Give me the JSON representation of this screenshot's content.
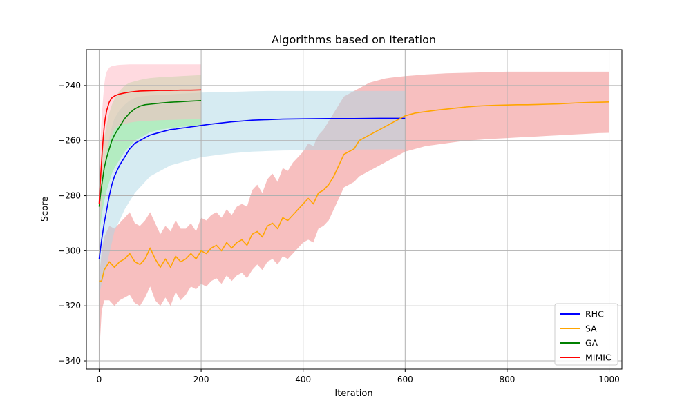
{
  "chart_data": {
    "type": "line",
    "title": "Algorithms based on Iteration",
    "xlabel": "Iteration",
    "ylabel": "Score",
    "xlim": [
      -25,
      1025
    ],
    "ylim": [
      -343,
      -227
    ],
    "xticks": [
      0,
      200,
      400,
      600,
      800,
      1000
    ],
    "yticks": [
      -340,
      -320,
      -300,
      -280,
      -260,
      -240
    ],
    "grid": true,
    "legend_position": "lower-right",
    "series": [
      {
        "name": "RHC",
        "color": "#0000ff",
        "band_color": "#add8e6",
        "x": [
          0,
          5,
          10,
          15,
          20,
          25,
          30,
          40,
          50,
          60,
          70,
          80,
          90,
          100,
          110,
          120,
          130,
          140,
          150,
          160,
          170,
          180,
          190,
          200,
          220,
          240,
          260,
          280,
          300,
          330,
          360,
          400,
          450,
          500,
          550,
          600
        ],
        "y": [
          -303,
          -296,
          -290,
          -285,
          -280,
          -276,
          -273,
          -269,
          -266,
          -263,
          -261,
          -260,
          -259,
          -258,
          -257.5,
          -257,
          -256.5,
          -256,
          -255.8,
          -255.5,
          -255.3,
          -255,
          -254.8,
          -254.5,
          -254,
          -253.6,
          -253.2,
          -252.9,
          -252.6,
          -252.4,
          -252.2,
          -252.1,
          -252,
          -252,
          -251.9,
          -251.9
        ],
        "band_upper": [
          -290,
          -278,
          -270,
          -264,
          -259,
          -255,
          -252,
          -249,
          -247,
          -245.5,
          -244.5,
          -244,
          -243.8,
          -243.6,
          -243.5,
          -243.4,
          -243.3,
          -243.2,
          -243.1,
          -243,
          -242.9,
          -242.8,
          -242.7,
          -242.6,
          -242.5,
          -242.4,
          -242.3,
          -242.2,
          -242.1,
          -242.0,
          -242.0,
          -242.0,
          -242.0,
          -242.0,
          -242.0,
          -242.0
        ],
        "band_upper_note": "",
        "band_lower": [
          -316,
          -312,
          -309,
          -305,
          -301,
          -297,
          -293,
          -289,
          -285,
          -282,
          -279,
          -277,
          -275,
          -273,
          -272,
          -271,
          -270,
          -269,
          -268.5,
          -268,
          -267.5,
          -267,
          -266.5,
          -266,
          -265.5,
          -265,
          -264.6,
          -264.3,
          -264,
          -263.8,
          -263.6,
          -263.5,
          -263.4,
          -263.3,
          -263.2,
          -263.2
        ]
      },
      {
        "name": "SA",
        "color": "#ffa500",
        "band_color": "#f08080",
        "x": [
          0,
          5,
          10,
          20,
          30,
          40,
          50,
          60,
          70,
          80,
          90,
          100,
          110,
          120,
          130,
          140,
          150,
          160,
          170,
          180,
          190,
          200,
          210,
          220,
          230,
          240,
          250,
          260,
          270,
          280,
          290,
          300,
          310,
          320,
          330,
          340,
          350,
          360,
          370,
          380,
          390,
          400,
          410,
          420,
          430,
          440,
          450,
          460,
          470,
          480,
          490,
          500,
          510,
          520,
          530,
          540,
          550,
          560,
          570,
          580,
          590,
          600,
          620,
          640,
          660,
          680,
          700,
          720,
          740,
          760,
          780,
          800,
          820,
          840,
          860,
          880,
          900,
          920,
          940,
          960,
          980,
          1000
        ],
        "y": [
          -311,
          -311,
          -307,
          -304,
          -306,
          -304,
          -303,
          -301,
          -304,
          -305,
          -303,
          -299,
          -303,
          -306,
          -303,
          -306,
          -302,
          -304,
          -303,
          -301,
          -303,
          -300,
          -301,
          -299,
          -298,
          -300,
          -297,
          -299,
          -297,
          -296,
          -298,
          -294,
          -293,
          -295,
          -291,
          -290,
          -292,
          -288,
          -289,
          -287,
          -285,
          -283,
          -281,
          -283,
          -279,
          -278,
          -276,
          -273,
          -269,
          -265,
          -264,
          -263,
          -260,
          -259,
          -258,
          -257,
          -256,
          -255,
          -254,
          -253,
          -252,
          -251,
          -250,
          -249.5,
          -249,
          -248.6,
          -248.2,
          -247.8,
          -247.5,
          -247.3,
          -247.2,
          -247.1,
          -247,
          -247,
          -246.9,
          -246.8,
          -246.7,
          -246.5,
          -246.3,
          -246.2,
          -246.1,
          -246
        ],
        "band_upper": [
          -310,
          -300,
          -295,
          -291,
          -292,
          -290,
          -288,
          -286,
          -290,
          -291,
          -289,
          -286,
          -290,
          -294,
          -291,
          -293,
          -289,
          -292,
          -292,
          -290,
          -293,
          -288,
          -289,
          -287,
          -286,
          -288,
          -285,
          -287,
          -284,
          -283,
          -284,
          -278,
          -276,
          -279,
          -274,
          -272,
          -275,
          -270,
          -271,
          -268,
          -266,
          -264,
          -261,
          -262,
          -258,
          -256,
          -253,
          -250,
          -247,
          -244,
          -243,
          -242,
          -241,
          -240,
          -239,
          -238.5,
          -238,
          -237.5,
          -237.2,
          -237,
          -236.8,
          -236.6,
          -236.3,
          -236,
          -235.8,
          -235.6,
          -235.5,
          -235.4,
          -235.3,
          -235.2,
          -235.1,
          -235,
          -235,
          -235,
          -235,
          -235,
          -235,
          -235,
          -235,
          -235,
          -235,
          -235
        ],
        "band_lower": [
          -338,
          -322,
          -318,
          -318,
          -320,
          -318,
          -317,
          -316,
          -319,
          -320,
          -317,
          -313,
          -318,
          -320,
          -317,
          -320,
          -315,
          -318,
          -316,
          -313,
          -314,
          -312,
          -313,
          -311,
          -310,
          -312,
          -309,
          -311,
          -309,
          -308,
          -310,
          -307,
          -305,
          -307,
          -304,
          -303,
          -305,
          -302,
          -303,
          -301,
          -299,
          -297,
          -296,
          -297,
          -292,
          -291,
          -289,
          -285,
          -281,
          -277,
          -276,
          -275,
          -273,
          -272,
          -271,
          -270,
          -269,
          -268,
          -267,
          -266,
          -265,
          -264,
          -263,
          -262,
          -261.5,
          -261,
          -260.5,
          -260,
          -259.8,
          -259.5,
          -259.3,
          -259.1,
          -258.9,
          -258.7,
          -258.5,
          -258.3,
          -258.1,
          -257.9,
          -257.7,
          -257.5,
          -257.3,
          -257.2
        ]
      },
      {
        "name": "GA",
        "color": "#008000",
        "band_color": "#90ee90",
        "x": [
          0,
          3,
          6,
          10,
          15,
          20,
          25,
          30,
          40,
          50,
          60,
          70,
          80,
          90,
          100,
          120,
          140,
          160,
          180,
          200
        ],
        "y": [
          -284,
          -279,
          -275,
          -270,
          -266,
          -263,
          -260,
          -258,
          -255,
          -252,
          -250,
          -248.5,
          -247.5,
          -247,
          -246.8,
          -246.4,
          -246.1,
          -245.9,
          -245.7,
          -245.5
        ],
        "band_upper": [
          -276,
          -270,
          -265,
          -259,
          -254,
          -250,
          -247,
          -245,
          -242,
          -240,
          -239,
          -238.5,
          -238,
          -237.6,
          -237.3,
          -237,
          -236.8,
          -236.6,
          -236.4,
          -236.2
        ],
        "band_lower": [
          -294,
          -290,
          -286,
          -282,
          -278,
          -275,
          -272,
          -270,
          -267,
          -264,
          -262,
          -260,
          -259,
          -258,
          -257,
          -256,
          -255.5,
          -255,
          -254.8,
          -254.5
        ]
      },
      {
        "name": "MIMIC",
        "color": "#ff0000",
        "band_color": "#ffb6c1",
        "x": [
          0,
          2,
          4,
          6,
          8,
          10,
          12,
          15,
          20,
          25,
          30,
          35,
          40,
          50,
          60,
          70,
          80,
          100,
          120,
          140,
          160,
          180,
          200
        ],
        "y": [
          -283,
          -276,
          -270,
          -264,
          -259,
          -255,
          -252,
          -249,
          -246,
          -244.5,
          -243.8,
          -243.4,
          -243.1,
          -242.7,
          -242.4,
          -242.2,
          -242.0,
          -241.9,
          -241.8,
          -241.8,
          -241.7,
          -241.7,
          -241.6
        ],
        "band_upper": [
          -270,
          -262,
          -255,
          -249,
          -244,
          -240,
          -237,
          -235,
          -233.5,
          -233,
          -232.8,
          -232.6,
          -232.5,
          -232.4,
          -232.3,
          -232.3,
          -232.3,
          -232.3,
          -232.3,
          -232.3,
          -232.3,
          -232.3,
          -232.3
        ],
        "band_lower": [
          -296,
          -290,
          -285,
          -279,
          -274,
          -270,
          -267,
          -264,
          -260,
          -258,
          -256,
          -255,
          -254.5,
          -254,
          -253.5,
          -253.2,
          -253,
          -252.8,
          -252.6,
          -252.5,
          -252.4,
          -252.3,
          -252.2
        ]
      }
    ]
  }
}
